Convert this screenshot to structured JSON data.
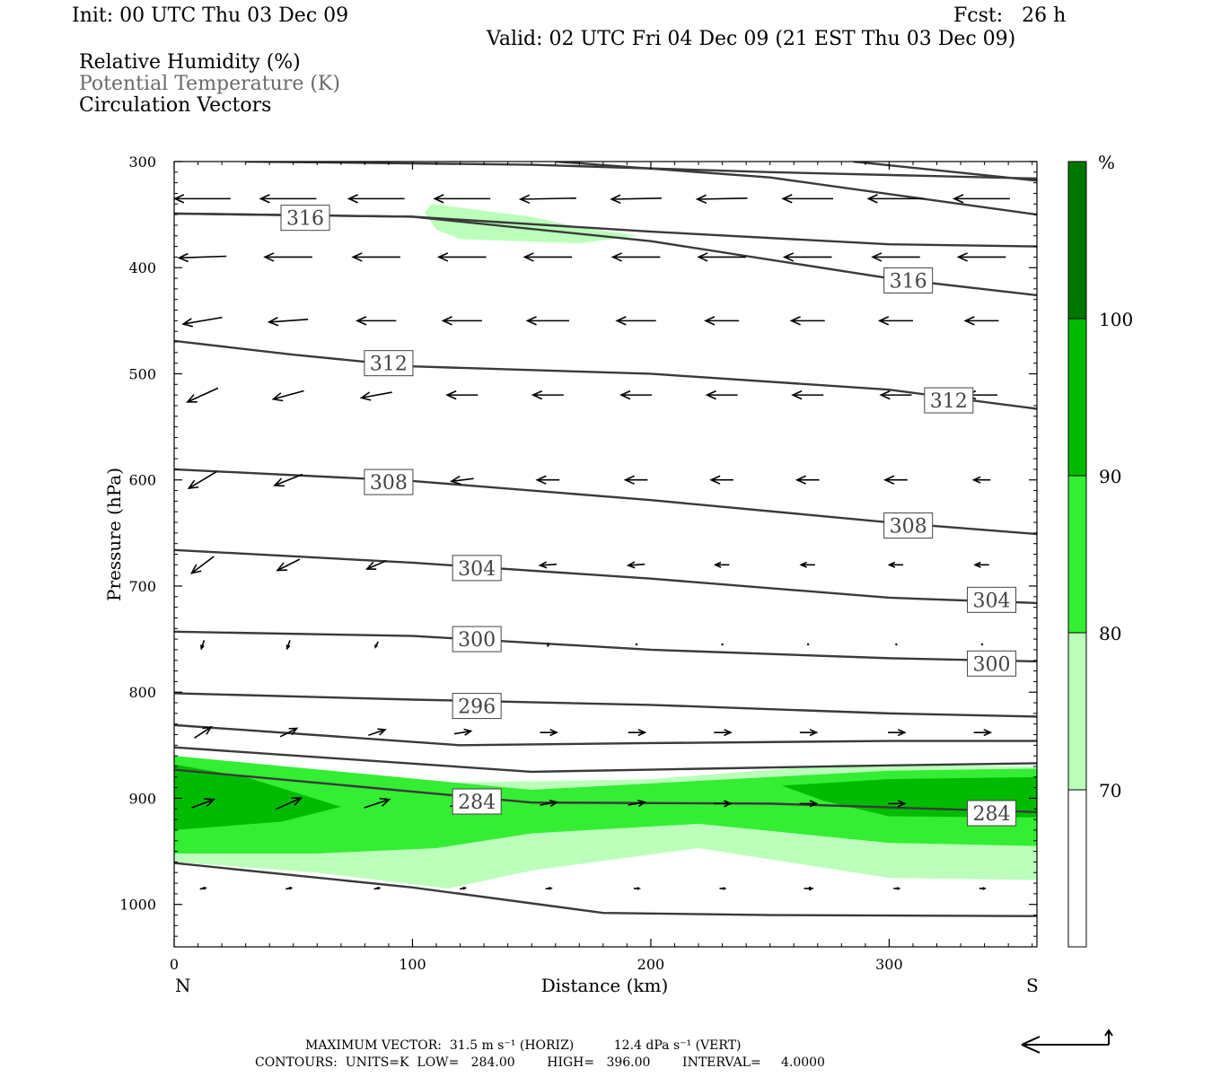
{
  "header": {
    "init": "Init: 00 UTC Thu 03 Dec 09",
    "fcst": "Fcst:   26 h",
    "valid": "Valid: 02 UTC Fri 04 Dec 09 (21 EST Thu 03 Dec 09)",
    "fields": [
      "Relative Humidity (%)",
      "Potential Temperature (K)",
      "Circulation Vectors"
    ]
  },
  "chart_data": {
    "type": "cross-section",
    "xlabel": "Distance (km)",
    "ylabel": "Pressure (hPa)",
    "xlim": [
      0,
      362
    ],
    "ylim": [
      300,
      1040
    ],
    "x_ticks": [
      0,
      100,
      200,
      300
    ],
    "y_ticks": [
      300,
      400,
      500,
      600,
      700,
      800,
      900,
      1000
    ],
    "x_endpoints": {
      "left": "N",
      "right": "S"
    },
    "colorbar": {
      "unit": "%",
      "levels": [
        70,
        80,
        90,
        100
      ],
      "colors": [
        "#ffffff",
        "#bbffbb",
        "#33ee33",
        "#00bb00",
        "#007700"
      ]
    },
    "rh_fill": [
      {
        "level": 70,
        "color": "#bbffbb",
        "polygon": [
          [
            0,
            864
          ],
          [
            100,
            886
          ],
          [
            200,
            882
          ],
          [
            280,
            868
          ],
          [
            362,
            870
          ],
          [
            362,
            977
          ],
          [
            300,
            975
          ],
          [
            220,
            947
          ],
          [
            150,
            968
          ],
          [
            115,
            985
          ],
          [
            60,
            970
          ],
          [
            0,
            960
          ]
        ]
      },
      {
        "level": 80,
        "color": "#33ee33",
        "polygon": [
          [
            0,
            860
          ],
          [
            150,
            892
          ],
          [
            200,
            886
          ],
          [
            300,
            874
          ],
          [
            362,
            872
          ],
          [
            362,
            945
          ],
          [
            300,
            942
          ],
          [
            220,
            924
          ],
          [
            150,
            933
          ],
          [
            110,
            947
          ],
          [
            60,
            952
          ],
          [
            0,
            952
          ]
        ]
      },
      {
        "level": 90,
        "color": "#00bb00",
        "polygon": [
          [
            0,
            868
          ],
          [
            30,
            880
          ],
          [
            70,
            908
          ],
          [
            45,
            922
          ],
          [
            0,
            930
          ]
        ]
      },
      {
        "level": 90,
        "color": "#00bb00",
        "polygon": [
          [
            255,
            888
          ],
          [
            300,
            882
          ],
          [
            362,
            880
          ],
          [
            362,
            918
          ],
          [
            300,
            917
          ],
          [
            272,
            902
          ]
        ]
      },
      {
        "level": 70,
        "color": "#bbffbb",
        "polygon": [
          [
            108,
            340
          ],
          [
            150,
            352
          ],
          [
            170,
            362
          ],
          [
            195,
            370
          ],
          [
            170,
            377
          ],
          [
            120,
            373
          ],
          [
            110,
            364
          ],
          [
            105,
            348
          ]
        ]
      }
    ],
    "theta_contours": [
      {
        "label": "",
        "points": [
          [
            30,
            300
          ],
          [
            150,
            303
          ],
          [
            250,
            310
          ],
          [
            362,
            316
          ]
        ]
      },
      {
        "label": "",
        "points": [
          [
            160,
            300
          ],
          [
            250,
            315
          ],
          [
            362,
            350
          ]
        ]
      },
      {
        "label": "",
        "points": [
          [
            285,
            300
          ],
          [
            362,
            318
          ]
        ]
      },
      {
        "label": "316",
        "points": [
          [
            0,
            349
          ],
          [
            100,
            352
          ],
          [
            200,
            366
          ],
          [
            300,
            378
          ],
          [
            362,
            380
          ]
        ]
      },
      {
        "label": "316",
        "points": [
          [
            0,
            349
          ],
          [
            100,
            352
          ],
          [
            200,
            375
          ],
          [
            300,
            410
          ],
          [
            362,
            426
          ]
        ]
      },
      {
        "label": "312",
        "points": [
          [
            0,
            469
          ],
          [
            50,
            482
          ],
          [
            100,
            493
          ],
          [
            200,
            500
          ],
          [
            300,
            515
          ],
          [
            362,
            533
          ]
        ]
      },
      {
        "label": "308",
        "points": [
          [
            0,
            590
          ],
          [
            100,
            601
          ],
          [
            200,
            619
          ],
          [
            300,
            640
          ],
          [
            362,
            651
          ]
        ]
      },
      {
        "label": "304",
        "points": [
          [
            0,
            666
          ],
          [
            100,
            678
          ],
          [
            200,
            693
          ],
          [
            300,
            711
          ],
          [
            362,
            716
          ]
        ]
      },
      {
        "label": "300",
        "points": [
          [
            0,
            743
          ],
          [
            100,
            747
          ],
          [
            200,
            760
          ],
          [
            300,
            768
          ],
          [
            362,
            771
          ]
        ]
      },
      {
        "label": "296",
        "points": [
          [
            0,
            801
          ],
          [
            100,
            807
          ],
          [
            200,
            812
          ],
          [
            300,
            820
          ],
          [
            362,
            823
          ]
        ]
      },
      {
        "label": "",
        "points": [
          [
            0,
            831
          ],
          [
            120,
            850
          ],
          [
            200,
            848
          ],
          [
            300,
            846
          ],
          [
            362,
            846
          ]
        ]
      },
      {
        "label": "",
        "points": [
          [
            0,
            852
          ],
          [
            150,
            875
          ],
          [
            200,
            873
          ],
          [
            300,
            869
          ],
          [
            362,
            867
          ]
        ]
      },
      {
        "label": "284",
        "points": [
          [
            0,
            873
          ],
          [
            150,
            904
          ],
          [
            250,
            905
          ],
          [
            362,
            913
          ]
        ]
      },
      {
        "label": "",
        "points": [
          [
            0,
            961
          ],
          [
            100,
            984
          ],
          [
            180,
            1008
          ],
          [
            250,
            1010
          ],
          [
            362,
            1011
          ]
        ]
      }
    ],
    "contour_labels": [
      {
        "text": "316",
        "x": 55,
        "p": 353
      },
      {
        "text": "316",
        "x": 308,
        "p": 412
      },
      {
        "text": "312",
        "x": 90,
        "p": 490
      },
      {
        "text": "312",
        "x": 325,
        "p": 525
      },
      {
        "text": "308",
        "x": 90,
        "p": 602
      },
      {
        "text": "308",
        "x": 308,
        "p": 643
      },
      {
        "text": "304",
        "x": 127,
        "p": 683
      },
      {
        "text": "304",
        "x": 343,
        "p": 713
      },
      {
        "text": "300",
        "x": 127,
        "p": 750
      },
      {
        "text": "300",
        "x": 343,
        "p": 773
      },
      {
        "text": "296",
        "x": 127,
        "p": 813
      },
      {
        "text": "284",
        "x": 127,
        "p": 903
      },
      {
        "text": "284",
        "x": 343,
        "p": 914
      }
    ],
    "vectors": {
      "x_positions": [
        12,
        48,
        85,
        121,
        157,
        194,
        230,
        266,
        303,
        339
      ],
      "rows": [
        {
          "p": 335,
          "u": [
            -1.0,
            -1.0,
            -1.0,
            -1.0,
            -1.0,
            -0.9,
            -0.9,
            -0.9,
            -1.0,
            -1.0
          ],
          "w": [
            0,
            0,
            0,
            0,
            0.02,
            0.02,
            0.02,
            0,
            0,
            0
          ]
        },
        {
          "p": 390,
          "u": [
            -0.85,
            -0.85,
            -0.85,
            -0.85,
            -0.85,
            -0.85,
            -0.85,
            -0.85,
            -0.85,
            -0.85
          ],
          "w": [
            0.03,
            0,
            0,
            0,
            0,
            0,
            0,
            0,
            0,
            0
          ]
        },
        {
          "p": 450,
          "u": [
            -0.7,
            -0.7,
            -0.7,
            -0.7,
            -0.75,
            -0.7,
            -0.6,
            -0.6,
            -0.6,
            -0.6
          ],
          "w": [
            0.12,
            0.05,
            0,
            0,
            0,
            0,
            0,
            0,
            0,
            0
          ]
        },
        {
          "p": 520,
          "u": [
            -0.55,
            -0.55,
            -0.55,
            -0.55,
            -0.55,
            -0.55,
            -0.55,
            -0.55,
            -0.55,
            -0.55
          ],
          "w": [
            0.25,
            0.15,
            0.1,
            0,
            0,
            0,
            0,
            0,
            0,
            0
          ]
        },
        {
          "p": 600,
          "u": [
            -0.5,
            -0.5,
            -0.4,
            -0.4,
            -0.4,
            -0.4,
            -0.4,
            -0.4,
            -0.4,
            -0.3
          ],
          "w": [
            0.3,
            0.2,
            0.1,
            0.05,
            0,
            0,
            0,
            0,
            0,
            0
          ]
        },
        {
          "p": 680,
          "u": [
            -0.4,
            -0.4,
            -0.35,
            -0.3,
            -0.3,
            -0.3,
            -0.25,
            -0.25,
            -0.25,
            -0.25
          ],
          "w": [
            0.3,
            0.2,
            0.15,
            0.05,
            0.02,
            0.02,
            0,
            0,
            0,
            0
          ]
        },
        {
          "p": 755,
          "u": [
            -0.05,
            -0.05,
            -0.05,
            -0.03,
            -0.02,
            -0.02,
            0,
            0,
            0,
            0
          ],
          "w": [
            0.15,
            0.15,
            0.1,
            0.05,
            0.05,
            0.02,
            0,
            0,
            0,
            0
          ]
        },
        {
          "p": 838,
          "u": [
            0.3,
            0.3,
            0.3,
            0.3,
            0.3,
            0.3,
            0.3,
            0.3,
            0.3,
            0.3
          ],
          "w": [
            -0.2,
            -0.15,
            -0.1,
            -0.05,
            0,
            0,
            0,
            0,
            0,
            0
          ]
        },
        {
          "p": 905,
          "u": [
            0.4,
            0.45,
            0.45,
            0.45,
            0.3,
            0.3,
            0.3,
            0.3,
            0.3,
            0.3
          ],
          "w": [
            -0.15,
            -0.2,
            -0.15,
            -0.1,
            -0.05,
            -0.05,
            0,
            0,
            0,
            0
          ]
        },
        {
          "p": 985,
          "u": [
            0.1,
            0.1,
            0.1,
            0.1,
            0.1,
            0.1,
            0.1,
            0.15,
            0.1,
            0.1
          ],
          "w": [
            -0.02,
            -0.02,
            -0.02,
            -0.02,
            -0.01,
            0,
            0,
            0,
            0,
            0
          ]
        }
      ]
    }
  },
  "footer": {
    "max_vector": "MAXIMUM VECTOR:  31.5 m s⁻¹ (HORIZ)          12.4 dPa s⁻¹ (VERT)",
    "contours": "CONTOURS:  UNITS=K  LOW=   284.00        HIGH=   396.00        INTERVAL=     4.0000"
  }
}
